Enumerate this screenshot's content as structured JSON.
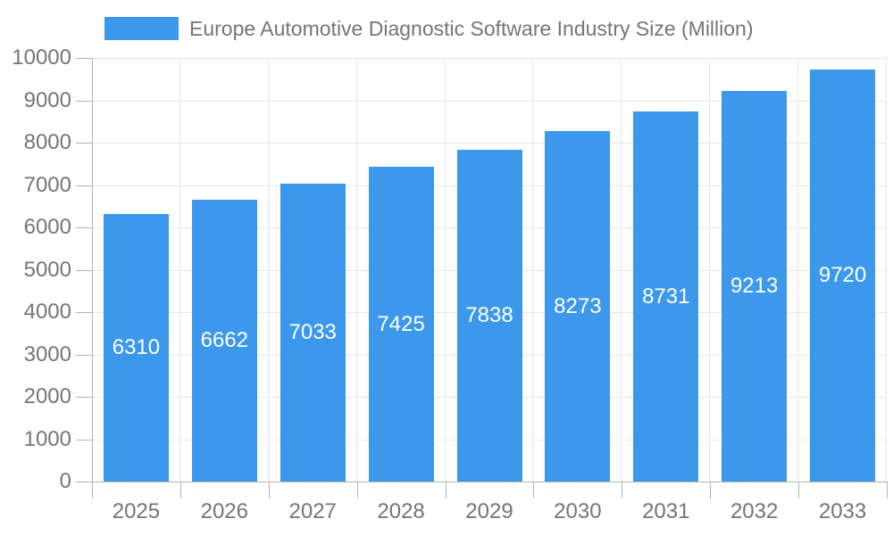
{
  "legend": {
    "label": "Europe Automotive Diagnostic Software Industry Size (Million)"
  },
  "chart_data": {
    "type": "bar",
    "title": "Europe Automotive Diagnostic Software Industry Size (Million)",
    "categories": [
      "2025",
      "2026",
      "2027",
      "2028",
      "2029",
      "2030",
      "2031",
      "2032",
      "2033"
    ],
    "series": [
      {
        "name": "Europe Automotive Diagnostic Software Industry Size (Million)",
        "values": [
          6310,
          6662,
          7033,
          7425,
          7838,
          8273,
          8731,
          9213,
          9720
        ]
      }
    ],
    "xlabel": "",
    "ylabel": "",
    "ylim": [
      0,
      10000
    ],
    "y_ticks": [
      0,
      1000,
      2000,
      3000,
      4000,
      5000,
      6000,
      7000,
      8000,
      9000,
      10000
    ],
    "grid": true,
    "legend_position": "top-left",
    "value_labels": "inside-center"
  },
  "colors": {
    "bar": "#3b98eb",
    "bar_label_text": "#ffffff",
    "axis_line": "#b3b3b3",
    "gridline": "#e6e6e6",
    "tick_text": "#757575",
    "legend_text": "#757575",
    "background": "#ffffff"
  }
}
